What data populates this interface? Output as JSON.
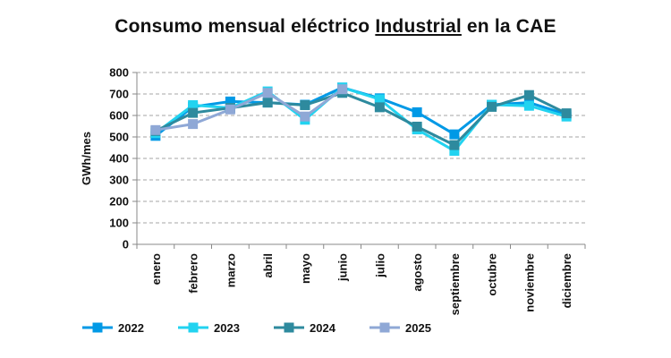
{
  "chart_data": {
    "type": "line",
    "title_pre": "Consumo mensual eléctrico ",
    "title_underlined": "Industrial",
    "title_post": " en la CAE",
    "xlabel": "",
    "ylabel": "GWh/mes",
    "ylim": [
      0,
      800
    ],
    "yticks": [
      0,
      100,
      200,
      300,
      400,
      500,
      600,
      700,
      800
    ],
    "grid": true,
    "legend_position": "bottom",
    "categories": [
      "enero",
      "febrero",
      "marzo",
      "abril",
      "mayo",
      "junio",
      "julio",
      "agosto",
      "septiembre",
      "octubre",
      "noviembre",
      "diciembre"
    ],
    "series": [
      {
        "name": "2022",
        "color": "#0099e6",
        "values": [
          505,
          640,
          665,
          660,
          650,
          730,
          680,
          615,
          512,
          650,
          660,
          605
        ]
      },
      {
        "name": "2023",
        "color": "#22d3f0",
        "values": [
          518,
          648,
          635,
          712,
          580,
          730,
          675,
          535,
          435,
          650,
          645,
          595
        ]
      },
      {
        "name": "2024",
        "color": "#2e8a9e",
        "values": [
          528,
          612,
          635,
          660,
          648,
          705,
          638,
          548,
          462,
          640,
          695,
          610
        ]
      },
      {
        "name": "2025",
        "color": "#8fa8d6",
        "values": [
          532,
          560,
          628,
          705,
          595,
          722,
          null,
          null,
          null,
          null,
          null,
          null
        ]
      }
    ]
  }
}
